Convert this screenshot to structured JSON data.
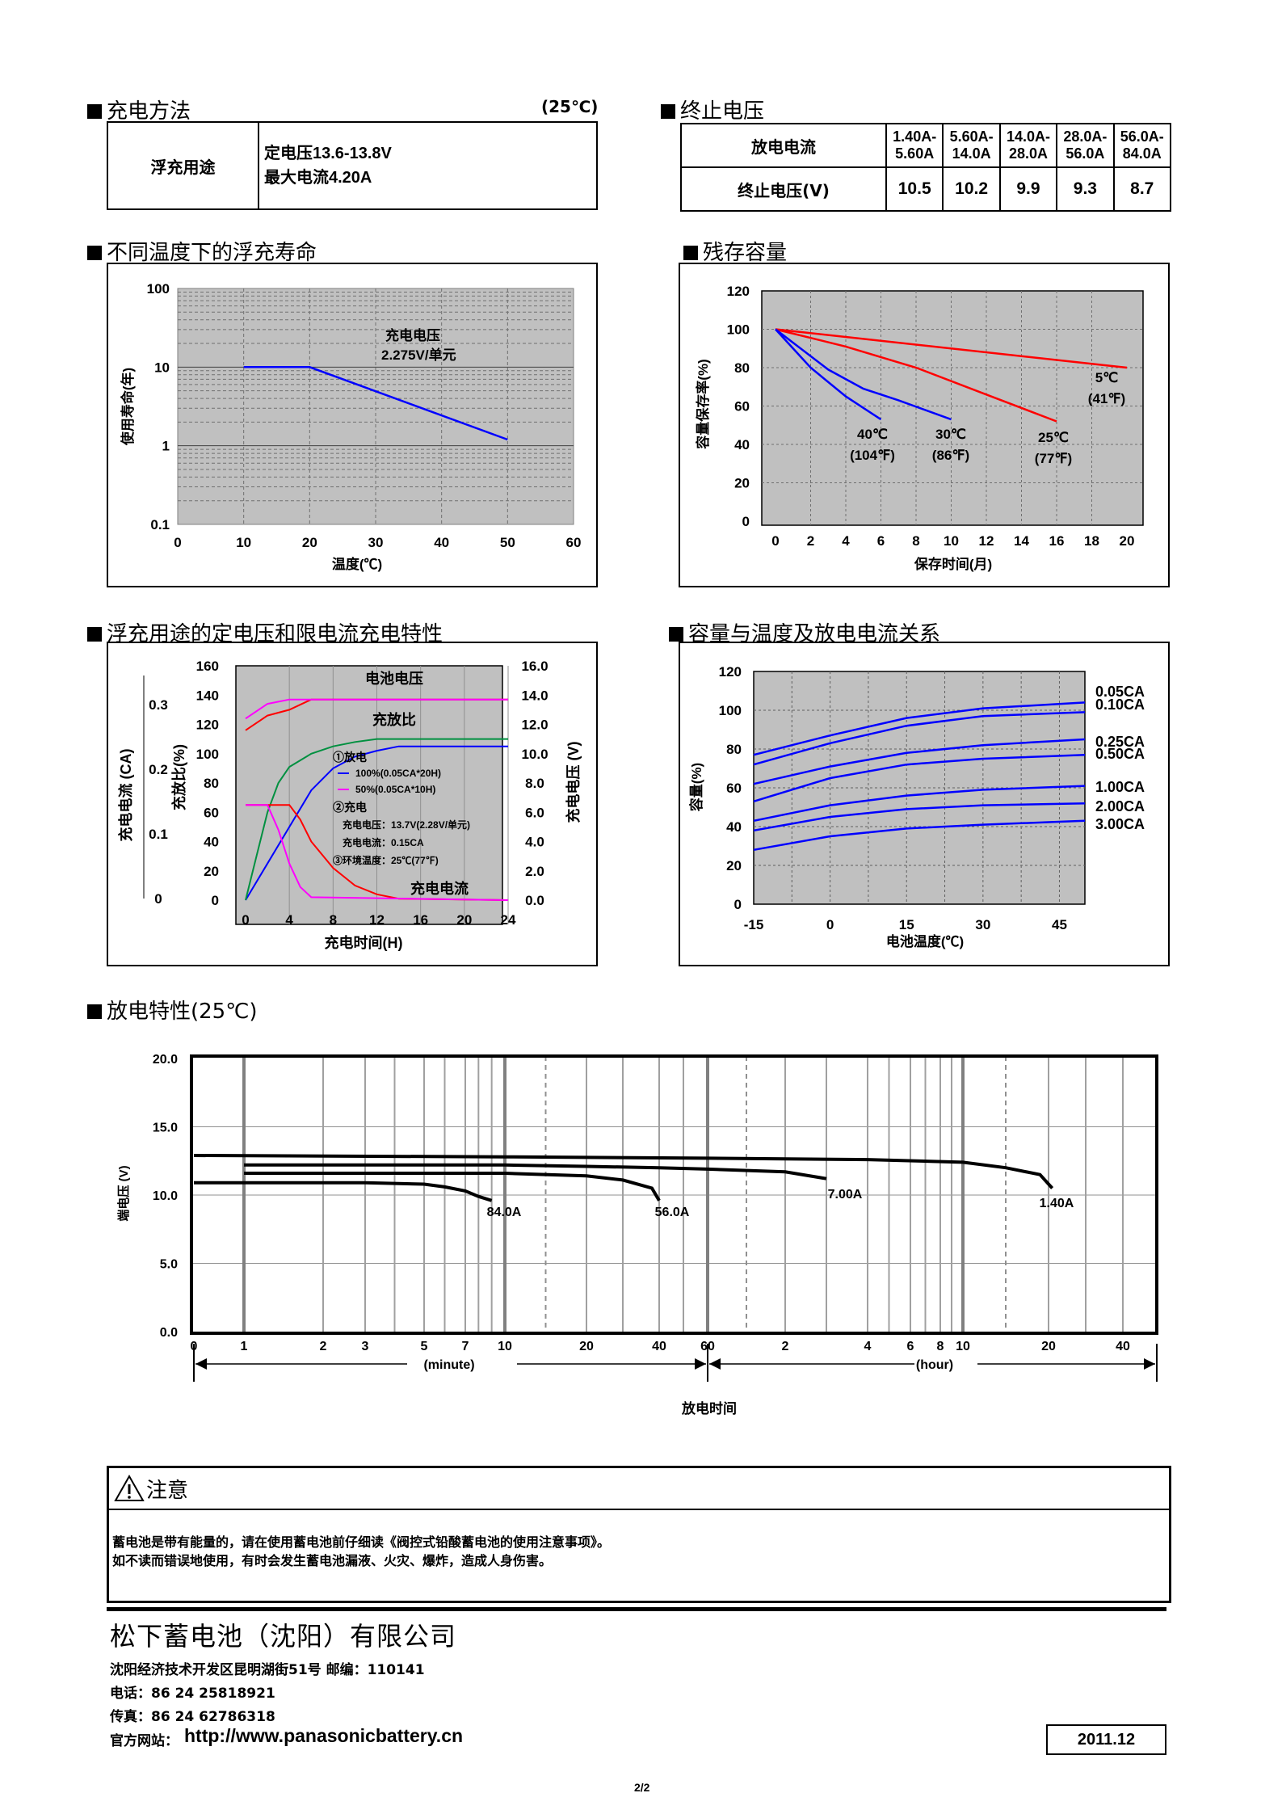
{
  "charging": {
    "title": "充电方法",
    "temp": "(25℃)",
    "row_label": "浮充用途",
    "line1": "定电压13.6-13.8V",
    "line2": "最大电流4.20A"
  },
  "cutoff": {
    "title": "终止电压",
    "row1_label": "放电电流",
    "row2_label": "终止电压(V)",
    "currents": [
      [
        "1.40A-",
        "5.60A"
      ],
      [
        "5.60A-",
        "14.0A"
      ],
      [
        "14.0A-",
        "28.0A"
      ],
      [
        "28.0A-",
        "56.0A"
      ],
      [
        "56.0A-",
        "84.0A"
      ]
    ],
    "voltages": [
      "10.5",
      "10.2",
      "9.9",
      "9.3",
      "8.7"
    ]
  },
  "float_life": {
    "title": "不同温度下的浮充寿命",
    "chart_data": {
      "type": "line",
      "ylabel": "使用寿命(年)",
      "xlabel": "温度(℃)",
      "yscale": "log",
      "ylim": [
        0.1,
        100
      ],
      "xlim": [
        0,
        60
      ],
      "x_ticks": [
        "0",
        "10",
        "20",
        "30",
        "40",
        "50",
        "60"
      ],
      "y_ticks": [
        "100",
        "10",
        "1",
        "0.1"
      ],
      "annotation": [
        "充电电压",
        "2.275V/单元"
      ],
      "series": [
        {
          "x": [
            10,
            20,
            50
          ],
          "values": [
            10,
            10,
            1.2
          ]
        }
      ]
    }
  },
  "residual": {
    "title": "残存容量",
    "chart_data": {
      "type": "line",
      "ylabel": "容量保存率(%)",
      "xlabel": "保存时间(月)",
      "xlim": [
        0,
        20
      ],
      "ylim": [
        0,
        120
      ],
      "x_ticks": [
        "0",
        "2",
        "4",
        "6",
        "8",
        "10",
        "12",
        "14",
        "16",
        "18",
        "20"
      ],
      "y_ticks": [
        "0",
        "20",
        "40",
        "60",
        "80",
        "100",
        "120"
      ],
      "series": [
        {
          "name": "5℃",
          "name2": "(41℉)",
          "color": "#ff0000",
          "x": [
            0,
            20
          ],
          "values": [
            100,
            80
          ]
        },
        {
          "name": "25℃",
          "name2": "(77℉)",
          "color": "#ff0000",
          "x": [
            0,
            4,
            8,
            12,
            16
          ],
          "values": [
            100,
            91,
            80,
            66,
            52
          ]
        },
        {
          "name": "30℃",
          "name2": "(86℉)",
          "color": "#0000ff",
          "x": [
            0,
            3,
            5,
            7,
            10
          ],
          "values": [
            100,
            79,
            69,
            63,
            53
          ]
        },
        {
          "name": "40℃",
          "name2": "(104℉)",
          "color": "#0000ff",
          "x": [
            0,
            2,
            4,
            6
          ],
          "values": [
            100,
            80,
            65,
            53
          ]
        }
      ]
    }
  },
  "float_charge": {
    "title": "浮充用途的定电压和限电流充电特性",
    "chart_data": {
      "type": "line",
      "xlabel": "充电时间(H)",
      "ylabel_left_outer": "充电电流 (CA)",
      "ylabel_left_inner": "充放比(%)",
      "ylabel_right": "充电电压 (V)",
      "x_ticks": [
        "0",
        "4",
        "8",
        "12",
        "16",
        "20",
        "24"
      ],
      "y_left_ticks": [
        "0",
        "20",
        "40",
        "60",
        "80",
        "100",
        "120",
        "140",
        "160"
      ],
      "y_right_ticks": [
        "0.0",
        "2.0",
        "4.0",
        "6.0",
        "8.0",
        "10.0",
        "12.0",
        "14.0",
        "16.0"
      ],
      "y_ca_ticks": [
        "0",
        "0.1",
        "0.2",
        "0.3"
      ],
      "labels": {
        "voltage": "电池电压",
        "ratio": "充放比",
        "current": "充电电流"
      },
      "legend": [
        "①放电",
        "100%(0.05CA*20H)",
        "50%(0.05CA*10H)",
        "②充电",
        "充电电压：13.7V(2.28V/单元)",
        "充电电流：0.15CA",
        "③环境温度：25℃(77℉)"
      ],
      "series": [
        {
          "name": "100% voltage",
          "color": "#ff0000",
          "x": [
            0,
            2,
            4,
            6,
            24
          ],
          "values": [
            116,
            126,
            130,
            137,
            137
          ]
        },
        {
          "name": "50% voltage",
          "color": "#ff00ff",
          "x": [
            0,
            2,
            4,
            24
          ],
          "values": [
            124,
            134,
            137,
            137
          ]
        },
        {
          "name": "100% ratio",
          "color": "#0000ff",
          "x": [
            0,
            2,
            4,
            6,
            8,
            10,
            12,
            14,
            24
          ],
          "values": [
            0,
            25,
            50,
            75,
            90,
            98,
            102,
            105,
            105
          ]
        },
        {
          "name": "50% ratio",
          "color": "#009040",
          "x": [
            0,
            1,
            2,
            3,
            4,
            6,
            8,
            10,
            12,
            24
          ],
          "values": [
            0,
            30,
            60,
            80,
            91,
            100,
            105,
            108,
            110,
            110
          ]
        },
        {
          "name": "100% current",
          "color": "#ff0000",
          "x": [
            0,
            4,
            5,
            6,
            8,
            10,
            12,
            14,
            24
          ],
          "values": [
            65,
            65,
            55,
            40,
            22,
            10,
            4,
            1,
            0
          ]
        },
        {
          "name": "50% current",
          "color": "#ff00ff",
          "x": [
            0,
            2,
            3,
            4,
            5,
            6,
            24
          ],
          "values": [
            65,
            65,
            48,
            25,
            9,
            2,
            0
          ]
        }
      ]
    }
  },
  "capacity_temp": {
    "title": "容量与温度及放电电流关系",
    "chart_data": {
      "type": "line",
      "ylabel": "容量(%)",
      "xlabel": "电池温度(℃)",
      "xlim": [
        -15,
        50
      ],
      "ylim": [
        0,
        120
      ],
      "x_ticks": [
        "-15",
        "0",
        "15",
        "30",
        "45"
      ],
      "y_ticks": [
        "0",
        "20",
        "40",
        "60",
        "80",
        "100",
        "120"
      ],
      "series": [
        {
          "name": "0.05CA",
          "x": [
            -15,
            0,
            15,
            30,
            50
          ],
          "values": [
            77,
            87,
            96,
            101,
            104
          ]
        },
        {
          "name": "0.10CA",
          "x": [
            -15,
            0,
            15,
            30,
            50
          ],
          "values": [
            72,
            83,
            92,
            97,
            99
          ]
        },
        {
          "name": "0.25CA",
          "x": [
            -15,
            0,
            15,
            30,
            50
          ],
          "values": [
            62,
            71,
            78,
            82,
            85
          ]
        },
        {
          "name": "0.50CA",
          "x": [
            -15,
            0,
            15,
            30,
            50
          ],
          "values": [
            53,
            65,
            72,
            75,
            77
          ]
        },
        {
          "name": "1.00CA",
          "x": [
            -15,
            0,
            15,
            30,
            50
          ],
          "values": [
            43,
            51,
            56,
            59,
            61
          ]
        },
        {
          "name": "2.00CA",
          "x": [
            -15,
            0,
            15,
            30,
            50
          ],
          "values": [
            38,
            45,
            49,
            51,
            52
          ]
        },
        {
          "name": "3.00CA",
          "x": [
            -15,
            0,
            15,
            30,
            50
          ],
          "values": [
            28,
            35,
            39,
            41,
            43
          ]
        }
      ]
    }
  },
  "discharge": {
    "title": "放电特性(25℃)",
    "chart_data": {
      "type": "line",
      "ylabel": "端电压 (V)",
      "xlabel": "放电时间",
      "ylim": [
        0,
        20
      ],
      "y_ticks": [
        "0.0",
        "5.0",
        "10.0",
        "15.0",
        "20.0"
      ],
      "minute_ticks": [
        "0",
        "1",
        "2",
        "3",
        "5",
        "7",
        "10",
        "20",
        "40",
        "60"
      ],
      "hour_ticks": [
        "2",
        "4",
        "6",
        "8",
        "10",
        "20",
        "40"
      ],
      "unit_minute": "(minute)",
      "unit_hour": "(hour)",
      "series": [
        {
          "name": "84.0A",
          "unit": "minute",
          "x": [
            0,
            3,
            5,
            6,
            7,
            8,
            9
          ],
          "values": [
            10.9,
            10.9,
            10.8,
            10.6,
            10.3,
            9.9,
            9.6
          ]
        },
        {
          "name": "56.0A",
          "unit": "minute",
          "x": [
            1,
            10,
            20,
            30,
            38,
            40
          ],
          "values": [
            11.6,
            11.6,
            11.4,
            11.1,
            10.5,
            9.6
          ]
        },
        {
          "name": "7.00A",
          "unit": "minute",
          "x": [
            1,
            10,
            20,
            40,
            60,
            120,
            180
          ],
          "values": [
            12.2,
            12.2,
            12.1,
            12.0,
            11.9,
            11.7,
            11.2
          ]
        },
        {
          "name": "1.40A",
          "unit": "minute",
          "x": [
            0,
            10,
            60,
            240,
            600,
            900,
            1140,
            1260
          ],
          "values": [
            12.9,
            12.8,
            12.7,
            12.6,
            12.4,
            12.0,
            11.5,
            10.5
          ]
        }
      ]
    }
  },
  "notice": {
    "title": "注意",
    "line1": "蓄电池是带有能量的，请在使用蓄电池前仔细读《阀控式铅酸蓄电池的使用注意事项》。",
    "line2": "如不读而错误地使用，有时会发生蓄电池漏液、火灾、爆炸，造成人身伤害。"
  },
  "footer": {
    "company": "松下蓄电池（沈阳）有限公司",
    "address": "沈阳经济技术开发区昆明湖街51号 邮编：110141",
    "phone": "电话：86 24 25818921",
    "fax": "传真：86 24 62786318",
    "web_label": "官方网站：",
    "web_url": "http://www.panasonicbattery.cn",
    "date": "2011.12",
    "page": "2/2"
  }
}
